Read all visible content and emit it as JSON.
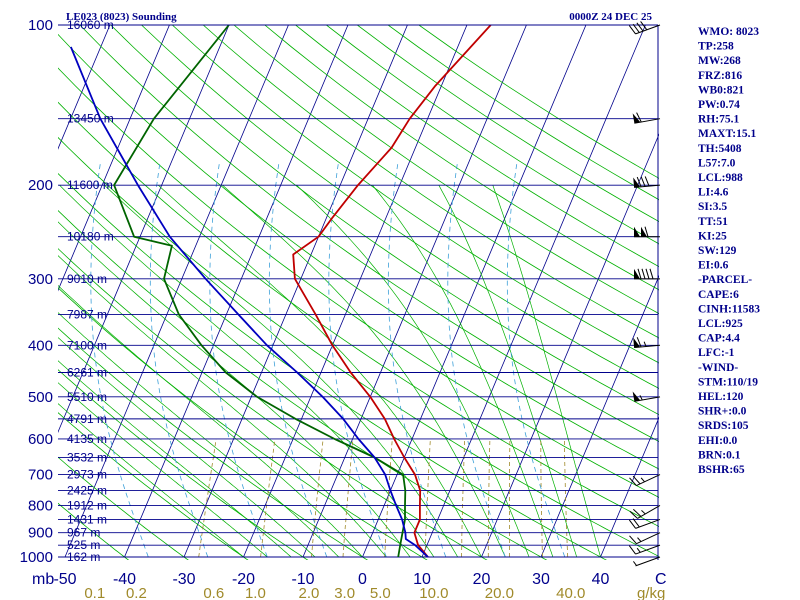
{
  "header": {
    "station": "LE023 (8023) Sounding",
    "time": "0000Z 24 DEC 25"
  },
  "colors": {
    "frame": "#00008b",
    "isotherm": "#00008b",
    "dry_adiabat": "#00b000",
    "moist_adiabat": "#00b000",
    "mixing_ratio": "#a08a2a",
    "temperature": "#c00000",
    "dewpoint": "#006400",
    "parcel": "#0000c0",
    "wet_bulb_dash": "#3ca0d8"
  },
  "indices": [
    "WMO: 8023",
    "TP:258",
    "MW:268",
    "FRZ:816",
    "WB0:821",
    "PW:0.74",
    "RH:75.1",
    "MAXT:15.1",
    "TH:5408",
    "L57:7.0",
    "LCL:988",
    "LI:4.6",
    "SI:3.5",
    "TT:51",
    "KI:25",
    "SW:129",
    "EI:0.6",
    "-PARCEL-",
    "CAPE:6",
    "CINH:11583",
    "LCL:925",
    "CAP:4.4",
    "LFC:-1",
    "-WIND-",
    "STM:110/19",
    "HEL:120",
    "SHR+:0.0",
    "SRDS:105",
    "EHI:0.0",
    "BRN:0.1",
    "BSHR:65"
  ],
  "chart_data": {
    "type": "line",
    "title": "LE023 (8023) Sounding",
    "y_unit_label": "mb",
    "x_unit_label": "C",
    "mixing_unit_label": "g/kg",
    "y_scale": "log",
    "ylim": [
      1000,
      100
    ],
    "xlim": [
      -50,
      50
    ],
    "pressure_ticks": [
      100,
      200,
      300,
      400,
      500,
      600,
      700,
      800,
      900,
      1000
    ],
    "temperature_ticks": [
      -50,
      -40,
      -30,
      -20,
      -10,
      0,
      10,
      20,
      30,
      40
    ],
    "mixing_ratio_labels": [
      "0.1",
      "0.2",
      "0.6",
      "1.0",
      "2.0",
      "3.0",
      "5.0",
      "10.0",
      "20.0",
      "40.0"
    ],
    "mixing_ratio_positions_c": [
      -45,
      -38,
      -25,
      -18,
      -9,
      -3,
      3,
      12,
      23,
      35
    ],
    "height_labels": [
      {
        "p": 100,
        "label": "16060 m"
      },
      {
        "p": 150,
        "label": "13450 m"
      },
      {
        "p": 200,
        "label": "11600 m"
      },
      {
        "p": 250,
        "label": "10180 m"
      },
      {
        "p": 300,
        "label": "9010 m"
      },
      {
        "p": 350,
        "label": "7987 m"
      },
      {
        "p": 400,
        "label": "7100 m"
      },
      {
        "p": 450,
        "label": "6261 m"
      },
      {
        "p": 500,
        "label": "5510 m"
      },
      {
        "p": 550,
        "label": "4791 m"
      },
      {
        "p": 600,
        "label": "4135 m"
      },
      {
        "p": 650,
        "label": "3532 m"
      },
      {
        "p": 700,
        "label": "2973 m"
      },
      {
        "p": 750,
        "label": "2425 m"
      },
      {
        "p": 800,
        "label": "1912 m"
      },
      {
        "p": 850,
        "label": "1431 m"
      },
      {
        "p": 900,
        "label": "967 m"
      },
      {
        "p": 950,
        "label": "525 m"
      },
      {
        "p": 1000,
        "label": "162 m"
      }
    ],
    "series": [
      {
        "key": "temperature",
        "points": [
          [
            1000,
            11
          ],
          [
            950,
            8.5
          ],
          [
            900,
            7
          ],
          [
            850,
            7
          ],
          [
            800,
            6
          ],
          [
            750,
            5
          ],
          [
            700,
            3
          ],
          [
            650,
            0
          ],
          [
            600,
            -3
          ],
          [
            550,
            -6
          ],
          [
            500,
            -10
          ],
          [
            450,
            -15
          ],
          [
            400,
            -20
          ],
          [
            350,
            -25
          ],
          [
            300,
            -31
          ],
          [
            270,
            -33
          ],
          [
            250,
            -30
          ],
          [
            230,
            -29
          ],
          [
            200,
            -27
          ],
          [
            170,
            -24
          ],
          [
            150,
            -23
          ],
          [
            130,
            -21
          ],
          [
            100,
            -16
          ]
        ]
      },
      {
        "key": "dewpoint",
        "points": [
          [
            1000,
            6
          ],
          [
            950,
            5.5
          ],
          [
            900,
            5
          ],
          [
            850,
            4.5
          ],
          [
            800,
            3.5
          ],
          [
            750,
            2.5
          ],
          [
            700,
            1
          ],
          [
            650,
            -5
          ],
          [
            600,
            -13
          ],
          [
            550,
            -21
          ],
          [
            500,
            -29
          ],
          [
            450,
            -36
          ],
          [
            400,
            -42
          ],
          [
            350,
            -48
          ],
          [
            300,
            -53
          ],
          [
            260,
            -54
          ],
          [
            250,
            -61
          ],
          [
            200,
            -68
          ],
          [
            150,
            -66
          ],
          [
            100,
            -60
          ]
        ]
      },
      {
        "key": "parcel",
        "points": [
          [
            1000,
            11
          ],
          [
            950,
            8
          ],
          [
            925,
            6
          ],
          [
            900,
            5.5
          ],
          [
            850,
            4
          ],
          [
            800,
            2
          ],
          [
            750,
            0
          ],
          [
            700,
            -2
          ],
          [
            650,
            -5
          ],
          [
            600,
            -9
          ],
          [
            550,
            -13
          ],
          [
            500,
            -18
          ],
          [
            450,
            -24
          ],
          [
            400,
            -31
          ],
          [
            350,
            -38
          ],
          [
            300,
            -46
          ],
          [
            250,
            -55
          ],
          [
            200,
            -64
          ],
          [
            150,
            -75
          ],
          [
            110,
            -85
          ]
        ]
      }
    ],
    "winds": [
      {
        "p": 1000,
        "dir": 250,
        "spd": 5
      },
      {
        "p": 950,
        "dir": 250,
        "spd": 15
      },
      {
        "p": 900,
        "dir": 245,
        "spd": 15
      },
      {
        "p": 850,
        "dir": 250,
        "spd": 20
      },
      {
        "p": 800,
        "dir": 240,
        "spd": 25
      },
      {
        "p": 700,
        "dir": 245,
        "spd": 25
      },
      {
        "p": 500,
        "dir": 260,
        "spd": 55
      },
      {
        "p": 400,
        "dir": 265,
        "spd": 65
      },
      {
        "p": 300,
        "dir": 270,
        "spd": 90
      },
      {
        "p": 250,
        "dir": 270,
        "spd": 110
      },
      {
        "p": 200,
        "dir": 265,
        "spd": 80
      },
      {
        "p": 150,
        "dir": 260,
        "spd": 60
      },
      {
        "p": 100,
        "dir": 250,
        "spd": 40
      }
    ]
  }
}
